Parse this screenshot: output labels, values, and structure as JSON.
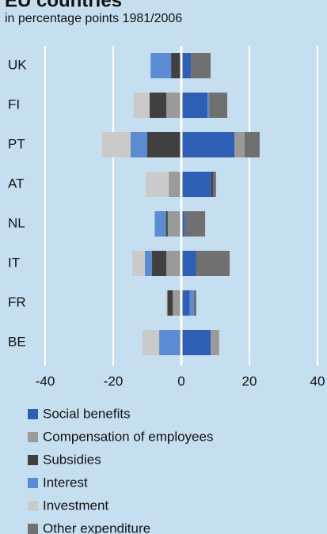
{
  "chart_data": {
    "type": "stacked-barh",
    "title": "EU countries",
    "subtitle": "in percentage points 1981/2006",
    "categories": [
      "UK",
      "FI",
      "PT",
      "AT",
      "NL",
      "IT",
      "FR",
      "BE"
    ],
    "series": [
      {
        "name": "Social benefits",
        "color": "#2f5fb5",
        "values": [
          2.8,
          7.7,
          15.6,
          8.8,
          1.0,
          4.4,
          2.5,
          8.6
        ]
      },
      {
        "name": "Compensation of employees",
        "color": "#9a9a9a",
        "values": [
          0,
          -4.4,
          3.0,
          -3.7,
          -4.0,
          -4.4,
          -2.5,
          2.5
        ]
      },
      {
        "name": "Subsidies",
        "color": "#404040",
        "values": [
          -3.0,
          -4.9,
          -10.0,
          0.5,
          -0.5,
          -4.2,
          -1.6,
          -0.5
        ]
      },
      {
        "name": "Interest",
        "color": "#5b8bd2",
        "values": [
          -6.0,
          0.5,
          -4.9,
          0,
          -3.3,
          -2.1,
          1.2,
          -6.0
        ]
      },
      {
        "name": "Investment",
        "color": "#cacaca",
        "values": [
          0,
          -4.7,
          -8.4,
          -6.7,
          0,
          -3.7,
          -0.5,
          -4.9
        ]
      },
      {
        "name": "Other expenditure",
        "color": "#707070",
        "values": [
          5.8,
          5.3,
          4.4,
          0.9,
          6.0,
          9.8,
          0.7,
          0
        ]
      }
    ],
    "xlim": [
      -40,
      40
    ],
    "xticks": [
      -40,
      -20,
      0,
      20,
      40
    ],
    "grid": true
  }
}
